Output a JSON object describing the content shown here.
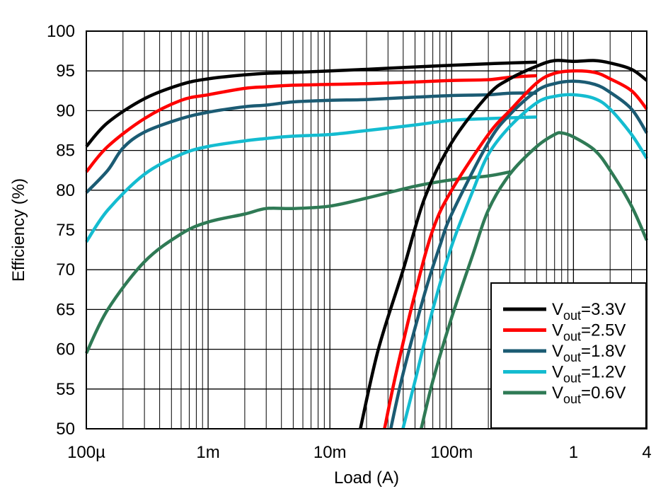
{
  "chart_data": {
    "type": "line",
    "title": "",
    "xlabel": "Load (A)",
    "ylabel": "Efficiency (%)",
    "xscale": "log",
    "xlim": [
      0.0001,
      4
    ],
    "ylim": [
      50,
      100
    ],
    "grid": true,
    "legend_position": "bottom-right",
    "x_ticks": [
      {
        "value": 0.0001,
        "label": "100µ"
      },
      {
        "value": 0.001,
        "label": "1m"
      },
      {
        "value": 0.01,
        "label": "10m"
      },
      {
        "value": 0.1,
        "label": "100m"
      },
      {
        "value": 1,
        "label": "1"
      },
      {
        "value": 4,
        "label": "4"
      }
    ],
    "y_ticks": [
      50,
      55,
      60,
      65,
      70,
      75,
      80,
      85,
      90,
      95,
      100
    ],
    "legend_prefix": "V",
    "legend_subscript": "out",
    "series": [
      {
        "name": "3.3V",
        "color": "#000000",
        "light": [
          [
            0.0001,
            85.5
          ],
          [
            0.00015,
            88.5
          ],
          [
            0.0003,
            91.5
          ],
          [
            0.0006,
            93.3
          ],
          [
            0.001,
            94
          ],
          [
            0.002,
            94.5
          ],
          [
            0.003,
            94.7
          ],
          [
            0.005,
            94.8
          ],
          [
            0.01,
            95
          ],
          [
            0.02,
            95.2
          ],
          [
            0.05,
            95.5
          ],
          [
            0.1,
            95.7
          ],
          [
            0.2,
            95.9
          ],
          [
            0.3,
            96
          ],
          [
            0.5,
            96.1
          ]
        ],
        "pwm": [
          [
            0.0178,
            50
          ],
          [
            0.025,
            60
          ],
          [
            0.04,
            70
          ],
          [
            0.06,
            79
          ],
          [
            0.1,
            86
          ],
          [
            0.2,
            92
          ],
          [
            0.3,
            94
          ],
          [
            0.5,
            95.6
          ],
          [
            0.7,
            96.3
          ],
          [
            1,
            96.2
          ],
          [
            1.5,
            96.3
          ],
          [
            2,
            96
          ],
          [
            3,
            95.2
          ],
          [
            4,
            93.8
          ]
        ]
      },
      {
        "name": "2.5V",
        "color": "#ff0000",
        "light": [
          [
            0.0001,
            82.3
          ],
          [
            0.00015,
            85.5
          ],
          [
            0.0003,
            89
          ],
          [
            0.0006,
            91.3
          ],
          [
            0.001,
            92
          ],
          [
            0.002,
            92.8
          ],
          [
            0.003,
            93
          ],
          [
            0.005,
            93.2
          ],
          [
            0.01,
            93.3
          ],
          [
            0.02,
            93.4
          ],
          [
            0.05,
            93.6
          ],
          [
            0.1,
            93.8
          ],
          [
            0.2,
            93.9
          ],
          [
            0.3,
            94.2
          ],
          [
            0.5,
            94.4
          ]
        ],
        "pwm": [
          [
            0.0281,
            50
          ],
          [
            0.035,
            57
          ],
          [
            0.05,
            67
          ],
          [
            0.07,
            75
          ],
          [
            0.1,
            80
          ],
          [
            0.2,
            87
          ],
          [
            0.3,
            90
          ],
          [
            0.5,
            93.5
          ],
          [
            0.7,
            94.7
          ],
          [
            1,
            95
          ],
          [
            1.5,
            94.8
          ],
          [
            2,
            94
          ],
          [
            3,
            92.5
          ],
          [
            4,
            90.2
          ]
        ]
      },
      {
        "name": "1.8V",
        "color": "#1b5b73",
        "light": [
          [
            0.0001,
            79.7
          ],
          [
            0.00015,
            82.5
          ],
          [
            0.0002,
            85.3
          ],
          [
            0.0003,
            87.3
          ],
          [
            0.0006,
            89
          ],
          [
            0.001,
            89.8
          ],
          [
            0.002,
            90.5
          ],
          [
            0.003,
            90.7
          ],
          [
            0.005,
            91.1
          ],
          [
            0.01,
            91.3
          ],
          [
            0.02,
            91.4
          ],
          [
            0.05,
            91.7
          ],
          [
            0.1,
            91.9
          ],
          [
            0.2,
            92
          ],
          [
            0.3,
            92.2
          ],
          [
            0.5,
            92.2
          ]
        ],
        "pwm": [
          [
            0.0316,
            50
          ],
          [
            0.04,
            57
          ],
          [
            0.06,
            67
          ],
          [
            0.08,
            73
          ],
          [
            0.1,
            77
          ],
          [
            0.2,
            86
          ],
          [
            0.3,
            89.5
          ],
          [
            0.5,
            92.5
          ],
          [
            0.7,
            93.4
          ],
          [
            1,
            93.7
          ],
          [
            1.5,
            93.3
          ],
          [
            2,
            92.3
          ],
          [
            3,
            90.2
          ],
          [
            4,
            87.2
          ]
        ]
      },
      {
        "name": "1.2V",
        "color": "#14bcd0",
        "light": [
          [
            0.0001,
            73.5
          ],
          [
            0.00015,
            77.5
          ],
          [
            0.0003,
            82
          ],
          [
            0.0006,
            84.5
          ],
          [
            0.001,
            85.5
          ],
          [
            0.002,
            86.2
          ],
          [
            0.003,
            86.5
          ],
          [
            0.005,
            86.8
          ],
          [
            0.01,
            87
          ],
          [
            0.02,
            87.5
          ],
          [
            0.05,
            88.2
          ],
          [
            0.1,
            88.8
          ],
          [
            0.2,
            89
          ],
          [
            0.3,
            89.1
          ],
          [
            0.5,
            89.2
          ]
        ],
        "pwm": [
          [
            0.0398,
            50
          ],
          [
            0.05,
            56
          ],
          [
            0.07,
            65
          ],
          [
            0.1,
            73
          ],
          [
            0.15,
            80
          ],
          [
            0.2,
            84.5
          ],
          [
            0.3,
            88
          ],
          [
            0.5,
            91
          ],
          [
            0.7,
            91.8
          ],
          [
            1,
            92
          ],
          [
            1.5,
            91.5
          ],
          [
            2,
            90.2
          ],
          [
            3,
            87
          ],
          [
            4,
            84
          ]
        ]
      },
      {
        "name": "0.6V",
        "color": "#2f7a55",
        "light": [
          [
            0.0001,
            59.5
          ],
          [
            0.00015,
            65
          ],
          [
            0.0003,
            71
          ],
          [
            0.0006,
            74.5
          ],
          [
            0.001,
            76
          ],
          [
            0.002,
            77
          ],
          [
            0.003,
            77.7
          ],
          [
            0.005,
            77.7
          ],
          [
            0.01,
            78
          ],
          [
            0.02,
            79
          ],
          [
            0.05,
            80.5
          ],
          [
            0.1,
            81.3
          ],
          [
            0.2,
            81.8
          ],
          [
            0.3,
            82.3
          ]
        ],
        "pwm": [
          [
            0.0562,
            50
          ],
          [
            0.07,
            56
          ],
          [
            0.1,
            64
          ],
          [
            0.15,
            72
          ],
          [
            0.2,
            77.5
          ],
          [
            0.3,
            82
          ],
          [
            0.5,
            85.5
          ],
          [
            0.7,
            87
          ],
          [
            0.8,
            87.2
          ],
          [
            1,
            86.7
          ],
          [
            1.5,
            85
          ],
          [
            2,
            82.5
          ],
          [
            3,
            78
          ],
          [
            4,
            73.7
          ]
        ]
      }
    ]
  }
}
